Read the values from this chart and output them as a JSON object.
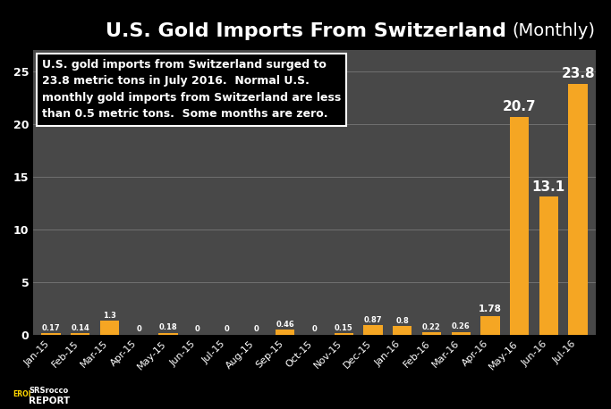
{
  "title_bold": "U.S. Gold Imports From Switzerland",
  "title_normal": " (Monthly)",
  "categories": [
    "Jan-15",
    "Feb-15",
    "Mar-15",
    "Apr-15",
    "May-15",
    "Jun-15",
    "Jul-15",
    "Aug-15",
    "Sep-15",
    "Oct-15",
    "Nov-15",
    "Dec-15",
    "Jan-16",
    "Feb-16",
    "Mar-16",
    "Apr-16",
    "May-16",
    "Jun-16",
    "Jul-16"
  ],
  "values": [
    0.17,
    0.14,
    1.3,
    0,
    0.18,
    0,
    0,
    0,
    0.46,
    0,
    0.15,
    0.87,
    0.8,
    0.22,
    0.26,
    1.78,
    20.7,
    13.1,
    23.8
  ],
  "bar_color": "#F5A623",
  "figure_bg": "#000000",
  "plot_bg": "#484848",
  "text_color": "#ffffff",
  "ylim": [
    0,
    27
  ],
  "yticks": [
    0,
    5,
    10,
    15,
    20,
    25
  ],
  "annotation_box_text": "U.S. gold imports from Switzerland surged to\n23.8 metric tons in July 2016.  Normal U.S.\nmonthly gold imports from Switzerland are less\nthan 0.5 metric tons.  Some months are zero.",
  "value_labels": [
    "0.17",
    "0.14",
    "1.3",
    "0",
    "0.18",
    "0",
    "0",
    "0",
    "0.46",
    "0",
    "0.15",
    "0.87",
    "0.8",
    "0.22",
    "0.26",
    "1.78",
    "20.7",
    "13.1",
    "23.8"
  ]
}
